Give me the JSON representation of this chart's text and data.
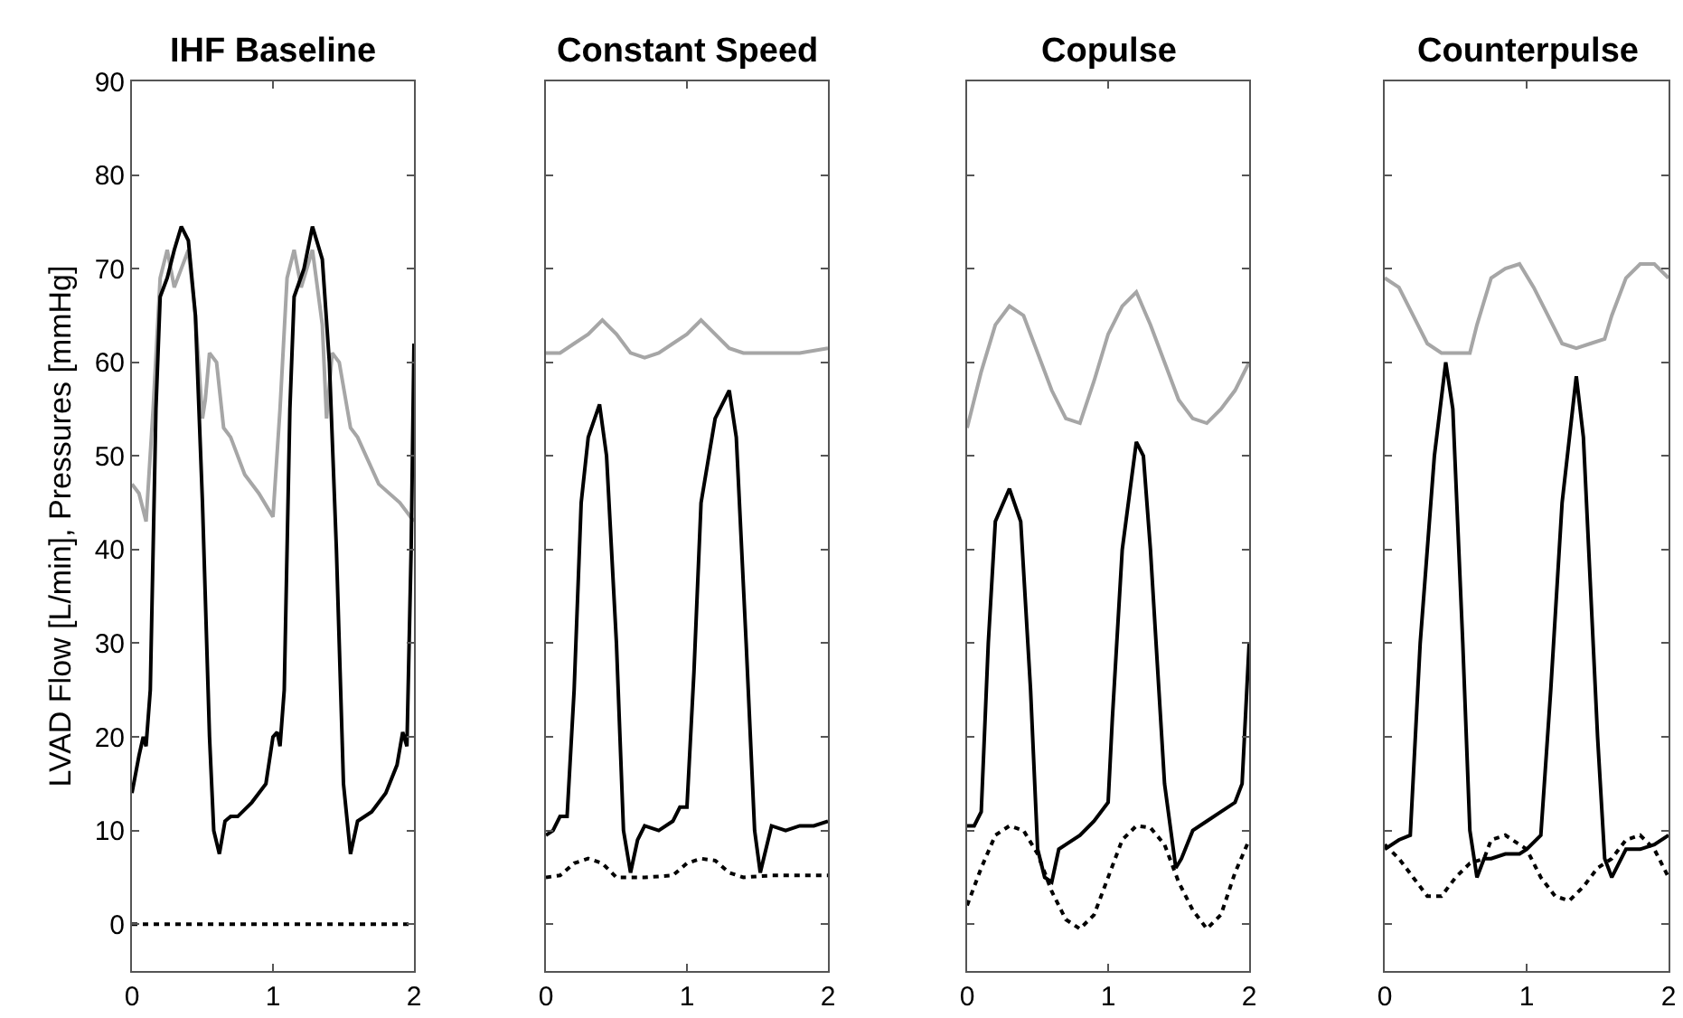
{
  "chart_data": [
    {
      "type": "line",
      "title": "IHF Baseline",
      "ylabel": "LVAD Flow [L/min], Pressures [mmHg]",
      "xlim": [
        0,
        2
      ],
      "xticks": [
        0,
        1,
        2
      ],
      "ylim": [
        -5,
        90
      ],
      "yticks": [
        0,
        10,
        20,
        30,
        40,
        50,
        60,
        70,
        80,
        90
      ],
      "series": [
        {
          "color": "#a6a6a6",
          "line_style": "solid",
          "x": [
            0,
            0.05,
            0.1,
            0.15,
            0.2,
            0.25,
            0.3,
            0.35,
            0.4,
            0.45,
            0.5,
            0.52,
            0.55,
            0.6,
            0.65,
            0.7,
            0.8,
            0.9,
            1.0,
            1.05,
            1.1,
            1.15,
            1.2,
            1.28,
            1.35,
            1.38,
            1.42,
            1.47,
            1.55,
            1.6,
            1.75,
            1.9,
            2.0
          ],
          "values": [
            47,
            46,
            43,
            55,
            69,
            72,
            68,
            70,
            72,
            65,
            54,
            56,
            61,
            60,
            53,
            52,
            48,
            46,
            43.5,
            55,
            69,
            72,
            68,
            72,
            64,
            54,
            61,
            60,
            53,
            52,
            47,
            45,
            43
          ]
        },
        {
          "color": "#000000",
          "line_style": "solid",
          "x": [
            0,
            0.05,
            0.08,
            0.1,
            0.13,
            0.17,
            0.2,
            0.25,
            0.3,
            0.35,
            0.4,
            0.45,
            0.5,
            0.55,
            0.58,
            0.62,
            0.66,
            0.7,
            0.75,
            0.85,
            0.95,
            1.0,
            1.03,
            1.05,
            1.08,
            1.12,
            1.15,
            1.22,
            1.28,
            1.35,
            1.4,
            1.45,
            1.5,
            1.55,
            1.6,
            1.7,
            1.8,
            1.88,
            1.92,
            1.95,
            1.98,
            2.0
          ],
          "values": [
            14,
            18,
            20,
            19,
            25,
            55,
            67,
            69,
            72,
            74.5,
            73,
            65,
            45,
            20,
            10,
            7.5,
            11,
            11.5,
            11.5,
            13,
            15,
            20,
            20.5,
            19,
            25,
            55,
            67,
            70,
            74.5,
            71,
            60,
            40,
            15,
            7.5,
            11,
            12,
            14,
            17,
            20.5,
            19,
            40,
            62
          ]
        },
        {
          "color": "#000000",
          "line_style": "dotted",
          "x": [
            0,
            2
          ],
          "values": [
            0,
            0
          ]
        }
      ]
    },
    {
      "type": "line",
      "title": "Constant Speed",
      "tick_labels": "x",
      "xlim": [
        0,
        2
      ],
      "xticks": [
        0,
        1,
        2
      ],
      "ylim": [
        -5,
        90
      ],
      "yticks": [
        0,
        10,
        20,
        30,
        40,
        50,
        60,
        70,
        80,
        90
      ],
      "series": [
        {
          "color": "#a6a6a6",
          "line_style": "solid",
          "x": [
            0,
            0.1,
            0.2,
            0.3,
            0.4,
            0.5,
            0.6,
            0.7,
            0.8,
            0.9,
            1.0,
            1.1,
            1.2,
            1.3,
            1.4,
            1.6,
            1.8,
            2.0
          ],
          "values": [
            61,
            61,
            62,
            63,
            64.5,
            63,
            61,
            60.5,
            61,
            62,
            63,
            64.5,
            63,
            61.5,
            61,
            61,
            61,
            61.5
          ]
        },
        {
          "color": "#000000",
          "line_style": "solid",
          "x": [
            0,
            0.05,
            0.1,
            0.15,
            0.2,
            0.25,
            0.3,
            0.38,
            0.43,
            0.5,
            0.55,
            0.6,
            0.65,
            0.7,
            0.8,
            0.9,
            0.95,
            1.0,
            1.05,
            1.1,
            1.2,
            1.3,
            1.35,
            1.42,
            1.48,
            1.52,
            1.6,
            1.7,
            1.8,
            1.9,
            2.0
          ],
          "values": [
            9.5,
            10,
            11.5,
            11.5,
            25,
            45,
            52,
            55.5,
            50,
            30,
            10,
            5.5,
            9,
            10.5,
            10,
            11,
            12.5,
            12.5,
            27,
            45,
            54,
            57,
            52,
            30,
            10,
            5.5,
            10.5,
            10,
            10.5,
            10.5,
            11
          ]
        },
        {
          "color": "#000000",
          "line_style": "dotted",
          "x": [
            0,
            0.1,
            0.2,
            0.3,
            0.4,
            0.5,
            0.7,
            0.9,
            1.0,
            1.1,
            1.2,
            1.3,
            1.4,
            1.6,
            1.8,
            2.0
          ],
          "values": [
            5,
            5.2,
            6.5,
            7,
            6.5,
            5,
            5,
            5.2,
            6.5,
            7,
            6.8,
            5.5,
            5,
            5.2,
            5.2,
            5.2
          ]
        }
      ]
    },
    {
      "type": "line",
      "title": "Copulse",
      "tick_labels": "x",
      "xlim": [
        0,
        2
      ],
      "xticks": [
        0,
        1,
        2
      ],
      "ylim": [
        -5,
        90
      ],
      "yticks": [
        0,
        10,
        20,
        30,
        40,
        50,
        60,
        70,
        80,
        90
      ],
      "series": [
        {
          "color": "#a6a6a6",
          "line_style": "solid",
          "x": [
            0,
            0.1,
            0.2,
            0.3,
            0.4,
            0.5,
            0.6,
            0.7,
            0.8,
            0.9,
            1.0,
            1.1,
            1.2,
            1.3,
            1.4,
            1.5,
            1.6,
            1.7,
            1.8,
            1.9,
            2.0
          ],
          "values": [
            53,
            59,
            64,
            66,
            65,
            61,
            57,
            54,
            53.5,
            58,
            63,
            66,
            67.5,
            64,
            60,
            56,
            54,
            53.5,
            55,
            57,
            60
          ]
        },
        {
          "color": "#000000",
          "line_style": "solid",
          "x": [
            0,
            0.05,
            0.1,
            0.15,
            0.2,
            0.3,
            0.38,
            0.45,
            0.5,
            0.55,
            0.6,
            0.65,
            0.7,
            0.8,
            0.9,
            1.0,
            1.03,
            1.1,
            1.2,
            1.25,
            1.3,
            1.4,
            1.48,
            1.52,
            1.6,
            1.7,
            1.8,
            1.9,
            1.95,
            2.0
          ],
          "values": [
            10.5,
            10.5,
            12,
            30,
            43,
            46.5,
            43,
            25,
            8,
            5,
            4.5,
            8,
            8.5,
            9.5,
            11,
            13,
            22,
            40,
            51.5,
            50,
            40,
            15,
            6,
            7,
            10,
            11,
            12,
            13,
            15,
            30
          ]
        },
        {
          "color": "#000000",
          "line_style": "dotted",
          "x": [
            0,
            0.1,
            0.2,
            0.3,
            0.4,
            0.5,
            0.6,
            0.7,
            0.8,
            0.9,
            1.0,
            1.1,
            1.2,
            1.3,
            1.4,
            1.5,
            1.6,
            1.7,
            1.8,
            1.9,
            2.0
          ],
          "values": [
            2,
            6,
            9.5,
            10.5,
            10,
            7.5,
            3.5,
            0.5,
            -0.5,
            1,
            5,
            9,
            10.5,
            10.3,
            8.5,
            4.5,
            1.5,
            -0.5,
            1,
            5.5,
            9
          ]
        }
      ]
    },
    {
      "type": "line",
      "title": "Counterpulse",
      "tick_labels": "x",
      "xlim": [
        0,
        2
      ],
      "xticks": [
        0,
        1,
        2
      ],
      "ylim": [
        -5,
        90
      ],
      "yticks": [
        0,
        10,
        20,
        30,
        40,
        50,
        60,
        70,
        80,
        90
      ],
      "series": [
        {
          "color": "#a6a6a6",
          "line_style": "solid",
          "x": [
            0,
            0.1,
            0.2,
            0.3,
            0.4,
            0.5,
            0.6,
            0.65,
            0.75,
            0.85,
            0.95,
            1.05,
            1.15,
            1.25,
            1.35,
            1.45,
            1.55,
            1.6,
            1.7,
            1.8,
            1.9,
            2.0
          ],
          "values": [
            69,
            68,
            65,
            62,
            61,
            61,
            61,
            64,
            69,
            70,
            70.5,
            68,
            65,
            62,
            61.5,
            62,
            62.5,
            65,
            69,
            70.5,
            70.5,
            69
          ]
        },
        {
          "color": "#000000",
          "line_style": "solid",
          "x": [
            0,
            0.1,
            0.18,
            0.25,
            0.35,
            0.43,
            0.48,
            0.55,
            0.6,
            0.65,
            0.7,
            0.75,
            0.85,
            0.95,
            1.0,
            1.1,
            1.17,
            1.25,
            1.35,
            1.4,
            1.5,
            1.55,
            1.6,
            1.65,
            1.7,
            1.8,
            1.9,
            2.0
          ],
          "values": [
            8,
            9,
            9.5,
            30,
            50,
            60,
            55,
            30,
            10,
            5,
            7,
            7,
            7.5,
            7.5,
            8,
            9.5,
            25,
            45,
            58.5,
            52,
            20,
            7,
            5,
            6.5,
            8,
            8,
            8.5,
            9.5
          ]
        },
        {
          "color": "#000000",
          "line_style": "dotted",
          "x": [
            0,
            0.1,
            0.2,
            0.3,
            0.4,
            0.5,
            0.6,
            0.7,
            0.75,
            0.85,
            1.0,
            1.1,
            1.2,
            1.3,
            1.4,
            1.5,
            1.6,
            1.7,
            1.8,
            1.9,
            2.0
          ],
          "values": [
            8.5,
            7,
            5,
            3,
            3,
            5,
            6.5,
            7,
            9,
            9.5,
            8,
            5,
            3,
            2.5,
            4,
            6,
            7,
            9,
            9.5,
            8,
            5
          ]
        }
      ]
    }
  ]
}
